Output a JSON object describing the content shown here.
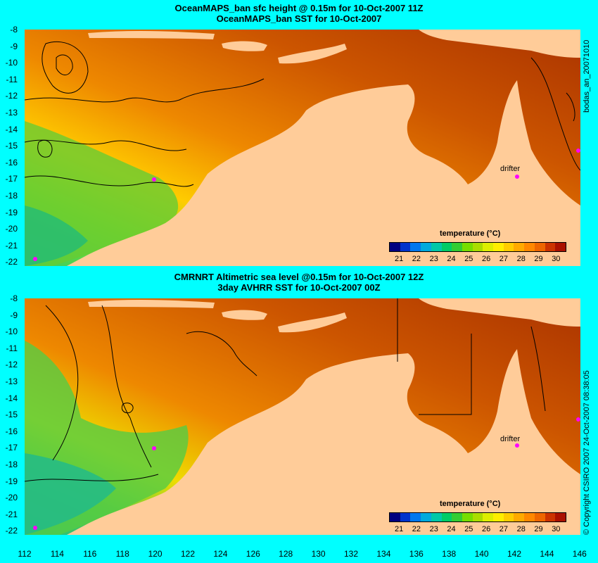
{
  "top": {
    "title1": "OceanMAPS_ban sfc height @ 0.15m for 10-Oct-2007 11Z",
    "title2": "OceanMAPS_ban SST for 10-Oct-2007",
    "side_label": "bodas_an_20071010",
    "drifter_label": "drifter",
    "colorbar_title": "temperature (°C)"
  },
  "bottom": {
    "title1": "CMRNRT Altimetric sea level  @0.15m  for 10-Oct-2007 12Z",
    "title2": "3day AVHRR SST for 10-Oct-2007 00Z",
    "side_label": "© Copyright CSIRO 2007   24-Oct-2007 08:38:05",
    "drifter_label": "drifter",
    "colorbar_title": "temperature (°C)"
  },
  "y_ticks": [
    "-8",
    "-9",
    "-10",
    "-11",
    "-12",
    "-13",
    "-14",
    "-15",
    "-16",
    "-17",
    "-18",
    "-19",
    "-20",
    "-21",
    "-22"
  ],
  "x_ticks": [
    "112",
    "114",
    "116",
    "118",
    "120",
    "122",
    "124",
    "126",
    "128",
    "130",
    "132",
    "134",
    "136",
    "138",
    "140",
    "142",
    "144",
    "146"
  ],
  "colorbar": {
    "ticks": [
      "21",
      "22",
      "23",
      "24",
      "25",
      "26",
      "27",
      "28",
      "29",
      "30"
    ],
    "colors": [
      "#000080",
      "#0033cc",
      "#0077ee",
      "#00aadd",
      "#00c8a8",
      "#00cc66",
      "#33cc33",
      "#77dd00",
      "#aadd00",
      "#ddee00",
      "#ffee00",
      "#ffcc00",
      "#ffaa00",
      "#ff8800",
      "#ee6600",
      "#cc3300",
      "#aa1100"
    ]
  },
  "colors": {
    "background": "#00ffff",
    "land": "#ffcc99",
    "drifter": "#ff00ff"
  }
}
